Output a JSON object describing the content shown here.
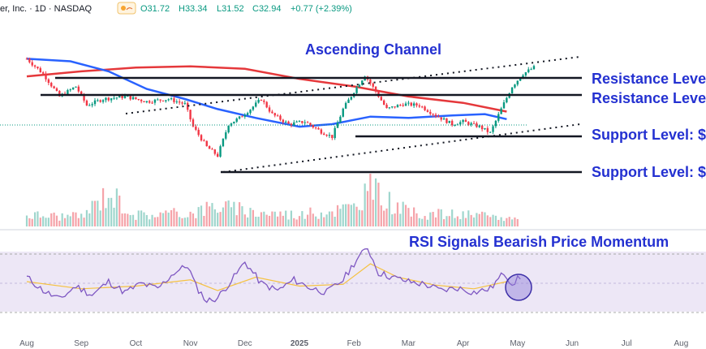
{
  "header": {
    "symbol": "er, Inc. · 1D · NASDAQ",
    "open": "O31.72",
    "high": "H33.34",
    "low": "L31.52",
    "close": "C32.94",
    "change": "+0.77 (+2.39%)"
  },
  "annotations": {
    "channel": "Ascending Channel",
    "resistance_upper": "Resistance Level",
    "resistance_lower": "Resistance Level",
    "support_upper": "Support Level: $",
    "support_lower": "Support Level: $",
    "rsi_note": "RSI Signals Bearish Price Momentum"
  },
  "colors": {
    "up": "#089981",
    "down": "#f23645",
    "ma_fast": "#2962ff",
    "ma_slow": "#e5383b",
    "annotation": "#2431d1",
    "rsi": "#7e57c2",
    "rsi_ma": "#f5c242",
    "rsi_band": "#ede7f6"
  },
  "chart_data": {
    "type": "line",
    "x_axis_labels": [
      "Aug",
      "Sep",
      "Oct",
      "Nov",
      "Dec",
      "2025",
      "Feb",
      "Mar",
      "Apr",
      "May",
      "Jun",
      "Jul",
      "Aug"
    ],
    "price_path": [
      {
        "month": 0.0,
        "value": 0.92
      },
      {
        "month": 0.3,
        "value": 0.8
      },
      {
        "month": 0.6,
        "value": 0.62
      },
      {
        "month": 0.9,
        "value": 0.7
      },
      {
        "month": 1.1,
        "value": 0.55
      },
      {
        "month": 1.4,
        "value": 0.6
      },
      {
        "month": 1.8,
        "value": 0.62
      },
      {
        "month": 2.2,
        "value": 0.58
      },
      {
        "month": 2.6,
        "value": 0.6
      },
      {
        "month": 2.9,
        "value": 0.56
      },
      {
        "month": 3.05,
        "value": 0.38
      },
      {
        "month": 3.3,
        "value": 0.22
      },
      {
        "month": 3.5,
        "value": 0.15
      },
      {
        "month": 3.7,
        "value": 0.4
      },
      {
        "month": 3.9,
        "value": 0.45
      },
      {
        "month": 4.1,
        "value": 0.52
      },
      {
        "month": 4.3,
        "value": 0.6
      },
      {
        "month": 4.5,
        "value": 0.48
      },
      {
        "month": 4.8,
        "value": 0.4
      },
      {
        "month": 5.1,
        "value": 0.42
      },
      {
        "month": 5.4,
        "value": 0.34
      },
      {
        "month": 5.6,
        "value": 0.3
      },
      {
        "month": 5.8,
        "value": 0.52
      },
      {
        "month": 6.0,
        "value": 0.66
      },
      {
        "month": 6.2,
        "value": 0.79
      },
      {
        "month": 6.4,
        "value": 0.66
      },
      {
        "month": 6.6,
        "value": 0.52
      },
      {
        "month": 6.9,
        "value": 0.56
      },
      {
        "month": 7.2,
        "value": 0.55
      },
      {
        "month": 7.5,
        "value": 0.47
      },
      {
        "month": 7.8,
        "value": 0.4
      },
      {
        "month": 8.0,
        "value": 0.42
      },
      {
        "month": 8.3,
        "value": 0.38
      },
      {
        "month": 8.5,
        "value": 0.33
      },
      {
        "month": 8.7,
        "value": 0.52
      },
      {
        "month": 8.9,
        "value": 0.7
      },
      {
        "month": 9.1,
        "value": 0.8
      },
      {
        "month": 9.3,
        "value": 0.85
      }
    ],
    "ma_slow_path": [
      {
        "month": 0.0,
        "value": 0.78
      },
      {
        "month": 1.0,
        "value": 0.82
      },
      {
        "month": 2.0,
        "value": 0.85
      },
      {
        "month": 3.0,
        "value": 0.86
      },
      {
        "month": 4.0,
        "value": 0.84
      },
      {
        "month": 5.0,
        "value": 0.76
      },
      {
        "month": 6.0,
        "value": 0.7
      },
      {
        "month": 7.0,
        "value": 0.62
      },
      {
        "month": 8.0,
        "value": 0.57
      },
      {
        "month": 8.8,
        "value": 0.5
      }
    ],
    "ma_fast_path": [
      {
        "month": 0.0,
        "value": 0.92
      },
      {
        "month": 0.8,
        "value": 0.9
      },
      {
        "month": 1.5,
        "value": 0.82
      },
      {
        "month": 2.2,
        "value": 0.68
      },
      {
        "month": 2.9,
        "value": 0.6
      },
      {
        "month": 3.5,
        "value": 0.52
      },
      {
        "month": 4.2,
        "value": 0.45
      },
      {
        "month": 5.0,
        "value": 0.38
      },
      {
        "month": 5.6,
        "value": 0.4
      },
      {
        "month": 6.3,
        "value": 0.46
      },
      {
        "month": 7.0,
        "value": 0.45
      },
      {
        "month": 7.8,
        "value": 0.47
      },
      {
        "month": 8.4,
        "value": 0.48
      },
      {
        "month": 8.8,
        "value": 0.44
      }
    ],
    "rsi_path": [
      {
        "month": 0.0,
        "value": 55
      },
      {
        "month": 0.3,
        "value": 40
      },
      {
        "month": 0.6,
        "value": 30
      },
      {
        "month": 0.9,
        "value": 45
      },
      {
        "month": 1.2,
        "value": 35
      },
      {
        "month": 1.5,
        "value": 50
      },
      {
        "month": 1.8,
        "value": 38
      },
      {
        "month": 2.1,
        "value": 48
      },
      {
        "month": 2.4,
        "value": 42
      },
      {
        "month": 2.7,
        "value": 60
      },
      {
        "month": 2.95,
        "value": 68
      },
      {
        "month": 3.1,
        "value": 45
      },
      {
        "month": 3.3,
        "value": 28
      },
      {
        "month": 3.5,
        "value": 32
      },
      {
        "month": 3.8,
        "value": 55
      },
      {
        "month": 4.0,
        "value": 72
      },
      {
        "month": 4.3,
        "value": 48
      },
      {
        "month": 4.6,
        "value": 40
      },
      {
        "month": 4.9,
        "value": 52
      },
      {
        "month": 5.2,
        "value": 43
      },
      {
        "month": 5.5,
        "value": 38
      },
      {
        "month": 5.8,
        "value": 52
      },
      {
        "month": 6.05,
        "value": 75
      },
      {
        "month": 6.25,
        "value": 88
      },
      {
        "month": 6.45,
        "value": 60
      },
      {
        "month": 6.7,
        "value": 55
      },
      {
        "month": 7.0,
        "value": 50
      },
      {
        "month": 7.3,
        "value": 47
      },
      {
        "month": 7.6,
        "value": 40
      },
      {
        "month": 7.9,
        "value": 43
      },
      {
        "month": 8.2,
        "value": 38
      },
      {
        "month": 8.5,
        "value": 42
      },
      {
        "month": 8.75,
        "value": 60
      },
      {
        "month": 8.9,
        "value": 48
      },
      {
        "month": 9.05,
        "value": 55
      }
    ],
    "rsi_ma_path": [
      {
        "month": 0.0,
        "value": 50
      },
      {
        "month": 1.0,
        "value": 42
      },
      {
        "month": 2.0,
        "value": 45
      },
      {
        "month": 3.0,
        "value": 52
      },
      {
        "month": 3.5,
        "value": 40
      },
      {
        "month": 4.2,
        "value": 55
      },
      {
        "month": 5.0,
        "value": 45
      },
      {
        "month": 5.8,
        "value": 47
      },
      {
        "month": 6.3,
        "value": 70
      },
      {
        "month": 6.8,
        "value": 55
      },
      {
        "month": 7.5,
        "value": 46
      },
      {
        "month": 8.2,
        "value": 42
      },
      {
        "month": 8.8,
        "value": 50
      }
    ],
    "rsi_bands": [
      30,
      70
    ],
    "volume_path": [
      {
        "month": 0.0,
        "value": 0.3
      },
      {
        "month": 1.0,
        "value": 0.25
      },
      {
        "month": 1.5,
        "value": 0.9
      },
      {
        "month": 2.0,
        "value": 0.3
      },
      {
        "month": 3.0,
        "value": 0.35
      },
      {
        "month": 3.5,
        "value": 0.55
      },
      {
        "month": 4.0,
        "value": 0.4
      },
      {
        "month": 5.0,
        "value": 0.3
      },
      {
        "month": 6.0,
        "value": 0.5
      },
      {
        "month": 6.25,
        "value": 1.0
      },
      {
        "month": 7.0,
        "value": 0.35
      },
      {
        "month": 8.0,
        "value": 0.3
      },
      {
        "month": 9.0,
        "value": 0.2
      }
    ]
  }
}
